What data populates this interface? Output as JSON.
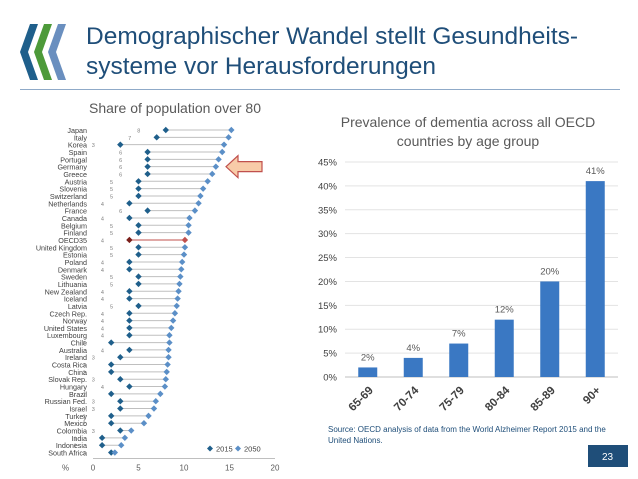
{
  "header": {
    "title_line1": "Demographischer Wandel stellt Gesundheits-",
    "title_line2": "systeme vor Herausforderungen"
  },
  "left_chart_title": "Share of population over 80",
  "right_chart_title_line1": "Prevalence of dementia across all OECD",
  "right_chart_title_line2": "countries by age group",
  "source_note": "Source: OECD analysis of data from the World Alzheimer Report 2015 and the United Nations.",
  "page_number": "23",
  "colors": {
    "title": "#1f4e79",
    "series_2015": "#1f5f8b",
    "series_2050": "#5b8fc7",
    "oecd_highlight": "#c0504d",
    "bars": "#3a78c3",
    "arrow_fill": "#f8cba8",
    "arrow_stroke": "#c0504d",
    "footer": "#1f4e79"
  },
  "chart_data": [
    {
      "type": "scatter",
      "subtype": "dot-plot",
      "title": "Share of population over 80",
      "xlabel": "%",
      "xlim": [
        0,
        20
      ],
      "xticks": [
        "0",
        "5",
        "10",
        "15",
        "20"
      ],
      "legend": [
        "2015",
        "2050"
      ],
      "legend_position": "bottom-right",
      "categories": [
        "Japan",
        "Italy",
        "Korea",
        "Spain",
        "Portugal",
        "Germany",
        "Greece",
        "Austria",
        "Slovenia",
        "Switzerland",
        "Netherlands",
        "France",
        "Canada",
        "Belgium",
        "Finland",
        "OECD35",
        "United Kingdom",
        "Estonia",
        "Poland",
        "Denmark",
        "Sweden",
        "Lithuania",
        "New Zealand",
        "Iceland",
        "Latvia",
        "Czech Rep.",
        "Norway",
        "United States",
        "Luxembourg",
        "Chile",
        "Australia",
        "Ireland",
        "Costa Rica",
        "China",
        "Slovak Rep.",
        "Hungary",
        "Brazil",
        "Russian Fed.",
        "Israel",
        "Turkey",
        "Mexico",
        "Colombia",
        "India",
        "Indonesia",
        "South Africa"
      ],
      "series": [
        {
          "name": "2015",
          "values": [
            8,
            7,
            3,
            6,
            6,
            6,
            6,
            5,
            5,
            5,
            4,
            6,
            4,
            5,
            5,
            4,
            5,
            5,
            4,
            4,
            5,
            5,
            4,
            4,
            5,
            4,
            4,
            4,
            4,
            2,
            4,
            3,
            2,
            2,
            3,
            4,
            2,
            3,
            3,
            2,
            2,
            3,
            1,
            1,
            2
          ],
          "labels": [
            "8",
            "7",
            "3",
            "6",
            "6",
            "6",
            "6",
            "5",
            "5",
            "5",
            "4",
            "6",
            "4",
            "5",
            "5",
            "4",
            "5",
            "5",
            "4",
            "4",
            "5",
            "5",
            "4",
            "4",
            "5",
            "4",
            "4",
            "4",
            "4",
            "2",
            "4",
            "3",
            "2",
            "2",
            "3",
            "4",
            "2",
            "3",
            "3",
            "2",
            "2",
            "3",
            "1",
            "1",
            "2"
          ]
        },
        {
          "name": "2050",
          "values": [
            15.2,
            14.9,
            14.4,
            14.2,
            13.8,
            13.5,
            13.1,
            12.6,
            12.1,
            11.8,
            11.6,
            11.2,
            10.6,
            10.5,
            10.5,
            10.1,
            10.1,
            10.0,
            9.8,
            9.7,
            9.6,
            9.5,
            9.4,
            9.3,
            9.2,
            9.0,
            8.8,
            8.6,
            8.4,
            8.4,
            8.3,
            8.3,
            8.2,
            8.1,
            8.0,
            7.9,
            7.4,
            6.9,
            6.7,
            6.1,
            5.6,
            4.2,
            3.5,
            3.1,
            2.4
          ]
        }
      ]
    },
    {
      "type": "bar",
      "title": "Prevalence of dementia across all OECD countries by age group",
      "categories": [
        "65-69",
        "70-74",
        "75-79",
        "80-84",
        "85-89",
        "90+"
      ],
      "values": [
        2,
        4,
        7,
        12,
        20,
        41
      ],
      "data_labels": [
        "2%",
        "4%",
        "7%",
        "12%",
        "20%",
        "41%"
      ],
      "ylim": [
        0,
        45
      ],
      "yticks": [
        "0%",
        "5%",
        "10%",
        "15%",
        "20%",
        "25%",
        "30%",
        "35%",
        "40%",
        "45%"
      ]
    }
  ]
}
